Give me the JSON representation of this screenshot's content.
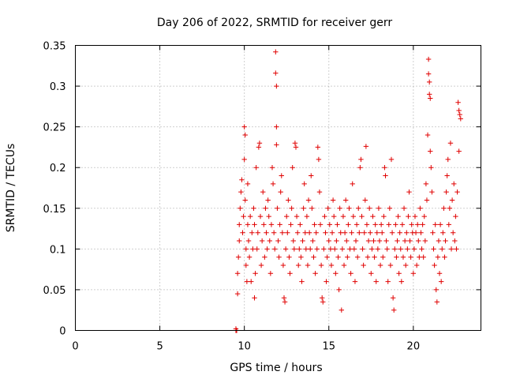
{
  "chart_data": {
    "type": "scatter",
    "title": "Day 206 of 2022, SRMTID for receiver gerr",
    "xlabel": "GPS time / hours",
    "ylabel": "SRMTID / TECUs",
    "xlim": [
      0,
      24
    ],
    "ylim": [
      0,
      0.35
    ],
    "xticks": [
      0,
      5,
      10,
      15,
      20
    ],
    "yticks": [
      0,
      0.05,
      0.1,
      0.15,
      0.2,
      0.25,
      0.3,
      0.35
    ],
    "xtick_labels": [
      "0",
      "5",
      "10",
      "15",
      "20"
    ],
    "ytick_labels": [
      "0",
      "0.05",
      "0.1",
      "0.15",
      "0.2",
      "0.25",
      "0.3",
      "0.35"
    ],
    "grid": true,
    "marker": "+",
    "color": "#e00000",
    "series": [
      {
        "name": "SRMTID",
        "points": [
          [
            9.5,
            0.0
          ],
          [
            9.55,
            0.0
          ],
          [
            9.5,
            0.002
          ],
          [
            9.6,
            0.045
          ],
          [
            9.6,
            0.07
          ],
          [
            9.65,
            0.09
          ],
          [
            9.7,
            0.11
          ],
          [
            9.7,
            0.13
          ],
          [
            9.75,
            0.15
          ],
          [
            9.8,
            0.17
          ],
          [
            9.85,
            0.185
          ],
          [
            9.9,
            0.12
          ],
          [
            9.95,
            0.14
          ],
          [
            10.0,
            0.21
          ],
          [
            10.0,
            0.25
          ],
          [
            10.05,
            0.24
          ],
          [
            10.05,
            0.16
          ],
          [
            10.1,
            0.1
          ],
          [
            10.1,
            0.08
          ],
          [
            10.15,
            0.06
          ],
          [
            10.2,
            0.13
          ],
          [
            10.2,
            0.18
          ],
          [
            10.25,
            0.11
          ],
          [
            10.3,
            0.09
          ],
          [
            10.35,
            0.14
          ],
          [
            10.4,
            0.06
          ],
          [
            10.45,
            0.12
          ],
          [
            10.5,
            0.1
          ],
          [
            10.55,
            0.15
          ],
          [
            10.6,
            0.13
          ],
          [
            10.6,
            0.04
          ],
          [
            10.65,
            0.07
          ],
          [
            10.7,
            0.2
          ],
          [
            10.75,
            0.1
          ],
          [
            10.8,
            0.12
          ],
          [
            10.85,
            0.225
          ],
          [
            10.9,
            0.23
          ],
          [
            10.95,
            0.14
          ],
          [
            11.0,
            0.08
          ],
          [
            11.05,
            0.11
          ],
          [
            11.1,
            0.17
          ],
          [
            11.15,
            0.13
          ],
          [
            11.2,
            0.09
          ],
          [
            11.25,
            0.15
          ],
          [
            11.3,
            0.12
          ],
          [
            11.35,
            0.1
          ],
          [
            11.4,
            0.16
          ],
          [
            11.45,
            0.14
          ],
          [
            11.5,
            0.11
          ],
          [
            11.55,
            0.07
          ],
          [
            11.6,
            0.13
          ],
          [
            11.65,
            0.2
          ],
          [
            11.7,
            0.18
          ],
          [
            11.75,
            0.12
          ],
          [
            11.8,
            0.1
          ],
          [
            11.85,
            0.342
          ],
          [
            11.85,
            0.316
          ],
          [
            11.9,
            0.3
          ],
          [
            11.9,
            0.25
          ],
          [
            11.9,
            0.228
          ],
          [
            11.95,
            0.15
          ],
          [
            12.0,
            0.11
          ],
          [
            12.05,
            0.09
          ],
          [
            12.1,
            0.13
          ],
          [
            12.15,
            0.17
          ],
          [
            12.2,
            0.19
          ],
          [
            12.25,
            0.12
          ],
          [
            12.3,
            0.08
          ],
          [
            12.35,
            0.04
          ],
          [
            12.4,
            0.035
          ],
          [
            12.45,
            0.1
          ],
          [
            12.5,
            0.14
          ],
          [
            12.55,
            0.12
          ],
          [
            12.6,
            0.16
          ],
          [
            12.65,
            0.09
          ],
          [
            12.7,
            0.07
          ],
          [
            12.75,
            0.13
          ],
          [
            12.8,
            0.15
          ],
          [
            12.85,
            0.2
          ],
          [
            12.9,
            0.11
          ],
          [
            12.95,
            0.1
          ],
          [
            13.0,
            0.23
          ],
          [
            13.05,
            0.225
          ],
          [
            13.1,
            0.14
          ],
          [
            13.15,
            0.12
          ],
          [
            13.2,
            0.08
          ],
          [
            13.25,
            0.1
          ],
          [
            13.3,
            0.13
          ],
          [
            13.35,
            0.09
          ],
          [
            13.4,
            0.06
          ],
          [
            13.45,
            0.11
          ],
          [
            13.5,
            0.15
          ],
          [
            13.55,
            0.18
          ],
          [
            13.6,
            0.12
          ],
          [
            13.65,
            0.1
          ],
          [
            13.7,
            0.14
          ],
          [
            13.75,
            0.08
          ],
          [
            13.8,
            0.16
          ],
          [
            13.85,
            0.12
          ],
          [
            13.9,
            0.1
          ],
          [
            13.95,
            0.19
          ],
          [
            14.0,
            0.15
          ],
          [
            14.05,
            0.11
          ],
          [
            14.1,
            0.09
          ],
          [
            14.15,
            0.13
          ],
          [
            14.2,
            0.07
          ],
          [
            14.25,
            0.12
          ],
          [
            14.3,
            0.1
          ],
          [
            14.35,
            0.225
          ],
          [
            14.4,
            0.21
          ],
          [
            14.45,
            0.17
          ],
          [
            14.5,
            0.13
          ],
          [
            14.55,
            0.08
          ],
          [
            14.6,
            0.04
          ],
          [
            14.65,
            0.035
          ],
          [
            14.7,
            0.1
          ],
          [
            14.75,
            0.14
          ],
          [
            14.8,
            0.12
          ],
          [
            14.85,
            0.06
          ],
          [
            14.9,
            0.09
          ],
          [
            14.95,
            0.15
          ],
          [
            15.0,
            0.11
          ],
          [
            15.05,
            0.13
          ],
          [
            15.1,
            0.1
          ],
          [
            15.15,
            0.08
          ],
          [
            15.2,
            0.12
          ],
          [
            15.25,
            0.16
          ],
          [
            15.3,
            0.14
          ],
          [
            15.35,
            0.1
          ],
          [
            15.4,
            0.07
          ],
          [
            15.45,
            0.11
          ],
          [
            15.5,
            0.13
          ],
          [
            15.55,
            0.09
          ],
          [
            15.6,
            0.05
          ],
          [
            15.65,
            0.15
          ],
          [
            15.7,
            0.12
          ],
          [
            15.75,
            0.025
          ],
          [
            15.8,
            0.1
          ],
          [
            15.85,
            0.14
          ],
          [
            15.9,
            0.08
          ],
          [
            15.95,
            0.12
          ],
          [
            16.0,
            0.16
          ],
          [
            16.05,
            0.11
          ],
          [
            16.1,
            0.09
          ],
          [
            16.15,
            0.13
          ],
          [
            16.2,
            0.15
          ],
          [
            16.25,
            0.1
          ],
          [
            16.3,
            0.07
          ],
          [
            16.35,
            0.12
          ],
          [
            16.4,
            0.18
          ],
          [
            16.45,
            0.14
          ],
          [
            16.5,
            0.1
          ],
          [
            16.55,
            0.06
          ],
          [
            16.6,
            0.11
          ],
          [
            16.65,
            0.13
          ],
          [
            16.7,
            0.09
          ],
          [
            16.75,
            0.15
          ],
          [
            16.8,
            0.12
          ],
          [
            16.85,
            0.2
          ],
          [
            16.9,
            0.21
          ],
          [
            16.95,
            0.14
          ],
          [
            17.0,
            0.1
          ],
          [
            17.05,
            0.08
          ],
          [
            17.1,
            0.12
          ],
          [
            17.15,
            0.16
          ],
          [
            17.2,
            0.226
          ],
          [
            17.25,
            0.13
          ],
          [
            17.3,
            0.09
          ],
          [
            17.35,
            0.11
          ],
          [
            17.4,
            0.15
          ],
          [
            17.45,
            0.12
          ],
          [
            17.5,
            0.07
          ],
          [
            17.55,
            0.1
          ],
          [
            17.6,
            0.14
          ],
          [
            17.65,
            0.11
          ],
          [
            17.7,
            0.09
          ],
          [
            17.75,
            0.13
          ],
          [
            17.8,
            0.06
          ],
          [
            17.85,
            0.12
          ],
          [
            17.9,
            0.1
          ],
          [
            17.95,
            0.15
          ],
          [
            18.0,
            0.11
          ],
          [
            18.05,
            0.08
          ],
          [
            18.1,
            0.13
          ],
          [
            18.15,
            0.12
          ],
          [
            18.2,
            0.09
          ],
          [
            18.25,
            0.14
          ],
          [
            18.3,
            0.2
          ],
          [
            18.35,
            0.19
          ],
          [
            18.4,
            0.11
          ],
          [
            18.45,
            0.1
          ],
          [
            18.5,
            0.06
          ],
          [
            18.55,
            0.13
          ],
          [
            18.6,
            0.15
          ],
          [
            18.65,
            0.08
          ],
          [
            18.7,
            0.21
          ],
          [
            18.75,
            0.12
          ],
          [
            18.8,
            0.04
          ],
          [
            18.85,
            0.025
          ],
          [
            18.9,
            0.1
          ],
          [
            18.95,
            0.13
          ],
          [
            19.0,
            0.09
          ],
          [
            19.05,
            0.11
          ],
          [
            19.1,
            0.14
          ],
          [
            19.15,
            0.07
          ],
          [
            19.2,
            0.12
          ],
          [
            19.25,
            0.1
          ],
          [
            19.3,
            0.06
          ],
          [
            19.35,
            0.13
          ],
          [
            19.4,
            0.09
          ],
          [
            19.45,
            0.15
          ],
          [
            19.5,
            0.11
          ],
          [
            19.55,
            0.08
          ],
          [
            19.6,
            0.12
          ],
          [
            19.65,
            0.1
          ],
          [
            19.7,
            0.14
          ],
          [
            19.75,
            0.17
          ],
          [
            19.8,
            0.11
          ],
          [
            19.85,
            0.09
          ],
          [
            19.9,
            0.13
          ],
          [
            19.95,
            0.12
          ],
          [
            20.0,
            0.07
          ],
          [
            20.05,
            0.1
          ],
          [
            20.1,
            0.14
          ],
          [
            20.15,
            0.12
          ],
          [
            20.2,
            0.08
          ],
          [
            20.25,
            0.13
          ],
          [
            20.3,
            0.11
          ],
          [
            20.35,
            0.09
          ],
          [
            20.4,
            0.15
          ],
          [
            20.45,
            0.12
          ],
          [
            20.5,
            0.1
          ],
          [
            20.55,
            0.13
          ],
          [
            20.6,
            0.09
          ],
          [
            20.65,
            0.14
          ],
          [
            20.7,
            0.11
          ],
          [
            20.75,
            0.18
          ],
          [
            20.8,
            0.16
          ],
          [
            20.85,
            0.24
          ],
          [
            20.9,
            0.333
          ],
          [
            20.9,
            0.315
          ],
          [
            20.95,
            0.305
          ],
          [
            20.95,
            0.29
          ],
          [
            21.0,
            0.285
          ],
          [
            21.0,
            0.22
          ],
          [
            21.05,
            0.2
          ],
          [
            21.1,
            0.17
          ],
          [
            21.15,
            0.12
          ],
          [
            21.2,
            0.1
          ],
          [
            21.25,
            0.08
          ],
          [
            21.3,
            0.13
          ],
          [
            21.35,
            0.05
          ],
          [
            21.4,
            0.035
          ],
          [
            21.45,
            0.09
          ],
          [
            21.5,
            0.11
          ],
          [
            21.55,
            0.07
          ],
          [
            21.6,
            0.13
          ],
          [
            21.65,
            0.06
          ],
          [
            21.7,
            0.1
          ],
          [
            21.75,
            0.12
          ],
          [
            21.8,
            0.15
          ],
          [
            21.85,
            0.09
          ],
          [
            21.9,
            0.11
          ],
          [
            21.95,
            0.17
          ],
          [
            22.0,
            0.19
          ],
          [
            22.05,
            0.21
          ],
          [
            22.1,
            0.13
          ],
          [
            22.15,
            0.15
          ],
          [
            22.2,
            0.23
          ],
          [
            22.25,
            0.1
          ],
          [
            22.3,
            0.16
          ],
          [
            22.35,
            0.12
          ],
          [
            22.4,
            0.18
          ],
          [
            22.45,
            0.11
          ],
          [
            22.5,
            0.14
          ],
          [
            22.55,
            0.1
          ],
          [
            22.6,
            0.17
          ],
          [
            22.65,
            0.28
          ],
          [
            22.7,
            0.27
          ],
          [
            22.7,
            0.22
          ],
          [
            22.75,
            0.265
          ],
          [
            22.8,
            0.26
          ]
        ]
      }
    ]
  }
}
